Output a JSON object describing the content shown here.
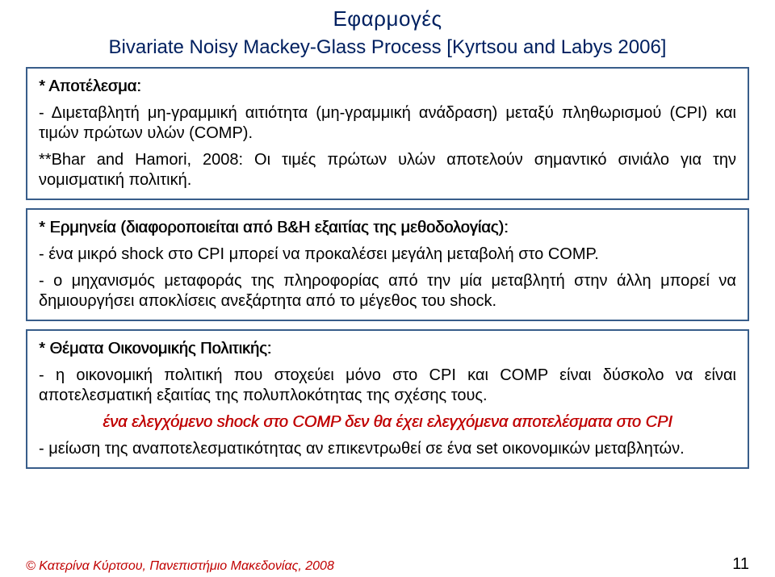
{
  "colors": {
    "title": "#002060",
    "box_border": "#385d8a",
    "text": "#000000",
    "accent_red": "#c00000",
    "background": "#ffffff"
  },
  "font_sizes": {
    "title": 26,
    "subtitle": 24,
    "body": 20,
    "footer": 16
  },
  "header": {
    "title": "Εφαρμογές",
    "subtitle": "Bivariate Noisy Mackey-Glass Process [Kyrtsou and Labys 2006]"
  },
  "box1": {
    "heading": "* Αποτέλεσμα:",
    "p1": "- Διμεταβλητή μη-γραμμική αιτιότητα (μη-γραμμική ανάδραση) μεταξύ πληθωρισμού (CPI) και τιμών πρώτων υλών (COMP).",
    "p2": "**Bhar and Hamori, 2008: Οι τιμές πρώτων υλών αποτελούν σημαντικό σινιάλο για την νομισματική πολιτική."
  },
  "box2": {
    "heading": "* Ερμηνεία (διαφοροποιείται από B&H εξαιτίας της μεθοδολογίας):",
    "p1": "- ένα μικρό shock στο CPI μπορεί να προκαλέσει μεγάλη μεταβολή στο COMP.",
    "p2": "- ο μηχανισμός μεταφοράς της πληροφορίας από την μία μεταβλητή στην άλλη μπορεί να δημιουργήσει αποκλίσεις ανεξάρτητα από το μέγεθος του shock."
  },
  "box3": {
    "heading": "* Θέματα Οικονομικής Πολιτικής:",
    "p1": "- η οικονομική πολιτική που στοχεύει μόνο στο CPI και COMP είναι δύσκολο να είναι αποτελεσματική εξαιτίας της πολυπλοκότητας της σχέσης τους.",
    "highlight": "ένα ελεγχόμενο shock στο COMP δεν θα έχει ελεγχόμενα αποτελέσματα στο CPI",
    "p2": "- μείωση της αναποτελεσματικότητας αν επικεντρωθεί σε ένα set οικονομικών μεταβλητών."
  },
  "footer": {
    "copyright": "© Κατερίνα Κύρτσου, Πανεπιστήμιο Μακεδονίας, 2008",
    "page": "11"
  }
}
